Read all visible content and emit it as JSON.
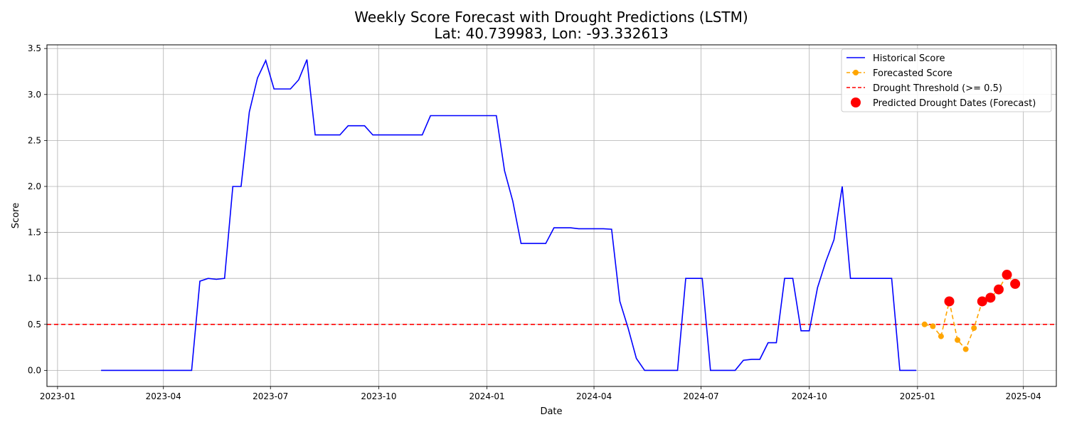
{
  "chart_data": {
    "type": "line",
    "title": "Weekly Score Forecast with Drought Predictions (LSTM)",
    "subtitle": "Lat: 40.739983, Lon: -93.332613",
    "xlabel": "Date",
    "ylabel": "Score",
    "xlim": [
      "2022-12-23",
      "2025-04-29"
    ],
    "ylim": [
      -0.175,
      3.54
    ],
    "grid": true,
    "legend_position": "top-right",
    "x_ticks": [
      "2023-01",
      "2023-04",
      "2023-07",
      "2023-10",
      "2024-01",
      "2024-04",
      "2024-07",
      "2024-10",
      "2025-01",
      "2025-04"
    ],
    "y_ticks": [
      "0.0",
      "0.5",
      "1.0",
      "1.5",
      "2.0",
      "2.5",
      "3.0",
      "3.5"
    ],
    "threshold": 0.5,
    "series": [
      {
        "name": "Historical Score",
        "color": "#0000ff",
        "style": "solid",
        "points": [
          [
            "2023-02-07",
            0.0
          ],
          [
            "2023-02-14",
            0.0
          ],
          [
            "2023-02-21",
            0.0
          ],
          [
            "2023-02-28",
            0.0
          ],
          [
            "2023-03-07",
            0.0
          ],
          [
            "2023-03-14",
            0.0
          ],
          [
            "2023-03-21",
            0.0
          ],
          [
            "2023-03-28",
            0.0
          ],
          [
            "2023-04-04",
            0.0
          ],
          [
            "2023-04-11",
            0.0
          ],
          [
            "2023-04-18",
            0.0
          ],
          [
            "2023-04-25",
            0.0
          ],
          [
            "2023-05-02",
            0.97
          ],
          [
            "2023-05-09",
            1.0
          ],
          [
            "2023-05-16",
            0.99
          ],
          [
            "2023-05-23",
            1.0
          ],
          [
            "2023-05-30",
            2.0
          ],
          [
            "2023-06-06",
            2.0
          ],
          [
            "2023-06-13",
            2.81
          ],
          [
            "2023-06-20",
            3.18
          ],
          [
            "2023-06-27",
            3.37
          ],
          [
            "2023-07-04",
            3.06
          ],
          [
            "2023-07-11",
            3.06
          ],
          [
            "2023-07-18",
            3.06
          ],
          [
            "2023-07-25",
            3.16
          ],
          [
            "2023-08-01",
            3.38
          ],
          [
            "2023-08-08",
            2.56
          ],
          [
            "2023-08-15",
            2.56
          ],
          [
            "2023-08-22",
            2.56
          ],
          [
            "2023-08-29",
            2.56
          ],
          [
            "2023-09-05",
            2.66
          ],
          [
            "2023-09-12",
            2.66
          ],
          [
            "2023-09-19",
            2.66
          ],
          [
            "2023-09-26",
            2.56
          ],
          [
            "2023-10-03",
            2.56
          ],
          [
            "2023-10-10",
            2.56
          ],
          [
            "2023-10-17",
            2.56
          ],
          [
            "2023-10-24",
            2.56
          ],
          [
            "2023-10-31",
            2.56
          ],
          [
            "2023-11-07",
            2.56
          ],
          [
            "2023-11-14",
            2.77
          ],
          [
            "2023-11-21",
            2.77
          ],
          [
            "2023-11-28",
            2.77
          ],
          [
            "2023-12-05",
            2.77
          ],
          [
            "2023-12-12",
            2.77
          ],
          [
            "2023-12-19",
            2.77
          ],
          [
            "2023-12-26",
            2.77
          ],
          [
            "2024-01-02",
            2.77
          ],
          [
            "2024-01-09",
            2.77
          ],
          [
            "2024-01-16",
            2.17
          ],
          [
            "2024-01-23",
            1.84
          ],
          [
            "2024-01-30",
            1.38
          ],
          [
            "2024-02-06",
            1.38
          ],
          [
            "2024-02-13",
            1.38
          ],
          [
            "2024-02-20",
            1.38
          ],
          [
            "2024-02-27",
            1.55
          ],
          [
            "2024-03-05",
            1.55
          ],
          [
            "2024-03-12",
            1.55
          ],
          [
            "2024-03-19",
            1.54
          ],
          [
            "2024-03-26",
            1.54
          ],
          [
            "2024-04-02",
            1.54
          ],
          [
            "2024-04-09",
            1.54
          ],
          [
            "2024-04-16",
            1.535
          ],
          [
            "2024-04-23",
            0.75
          ],
          [
            "2024-04-30",
            0.46
          ],
          [
            "2024-05-07",
            0.13
          ],
          [
            "2024-05-14",
            0.0
          ],
          [
            "2024-05-21",
            0.0
          ],
          [
            "2024-05-28",
            0.0
          ],
          [
            "2024-06-04",
            0.0
          ],
          [
            "2024-06-11",
            0.0
          ],
          [
            "2024-06-18",
            1.0
          ],
          [
            "2024-06-25",
            1.0
          ],
          [
            "2024-07-02",
            1.0
          ],
          [
            "2024-07-09",
            0.0
          ],
          [
            "2024-07-16",
            0.0
          ],
          [
            "2024-07-23",
            0.0
          ],
          [
            "2024-07-30",
            0.0
          ],
          [
            "2024-08-06",
            0.11
          ],
          [
            "2024-08-13",
            0.12
          ],
          [
            "2024-08-20",
            0.12
          ],
          [
            "2024-08-27",
            0.3
          ],
          [
            "2024-09-03",
            0.3
          ],
          [
            "2024-09-10",
            1.0
          ],
          [
            "2024-09-17",
            1.0
          ],
          [
            "2024-09-24",
            0.43
          ],
          [
            "2024-10-01",
            0.43
          ],
          [
            "2024-10-08",
            0.9
          ],
          [
            "2024-10-15",
            1.18
          ],
          [
            "2024-10-22",
            1.42
          ],
          [
            "2024-10-29",
            2.0
          ],
          [
            "2024-11-05",
            1.0
          ],
          [
            "2024-11-12",
            1.0
          ],
          [
            "2024-11-19",
            1.0
          ],
          [
            "2024-11-26",
            1.0
          ],
          [
            "2024-12-03",
            1.0
          ],
          [
            "2024-12-10",
            1.0
          ],
          [
            "2024-12-17",
            0.0
          ],
          [
            "2024-12-24",
            0.0
          ],
          [
            "2024-12-31",
            0.0
          ]
        ]
      },
      {
        "name": "Forecasted Score",
        "color": "#ffa500",
        "style": "dashed-with-markers",
        "points": [
          [
            "2025-01-07",
            0.5
          ],
          [
            "2025-01-14",
            0.48
          ],
          [
            "2025-01-21",
            0.37
          ],
          [
            "2025-01-28",
            0.75
          ],
          [
            "2025-02-04",
            0.33
          ],
          [
            "2025-02-11",
            0.23
          ],
          [
            "2025-02-18",
            0.46
          ],
          [
            "2025-02-25",
            0.75
          ],
          [
            "2025-03-04",
            0.79
          ],
          [
            "2025-03-11",
            0.88
          ],
          [
            "2025-03-18",
            1.04
          ],
          [
            "2025-03-25",
            0.94
          ]
        ]
      },
      {
        "name": "Drought Threshold (>= 0.5)",
        "color": "#ff0000",
        "style": "dashed",
        "y": 0.5
      },
      {
        "name": "Predicted Drought Dates (Forecast)",
        "color": "#ff0000",
        "style": "markers",
        "points": [
          [
            "2025-01-28",
            0.75
          ],
          [
            "2025-02-25",
            0.75
          ],
          [
            "2025-03-04",
            0.79
          ],
          [
            "2025-03-11",
            0.88
          ],
          [
            "2025-03-18",
            1.04
          ],
          [
            "2025-03-25",
            0.94
          ]
        ]
      }
    ]
  }
}
